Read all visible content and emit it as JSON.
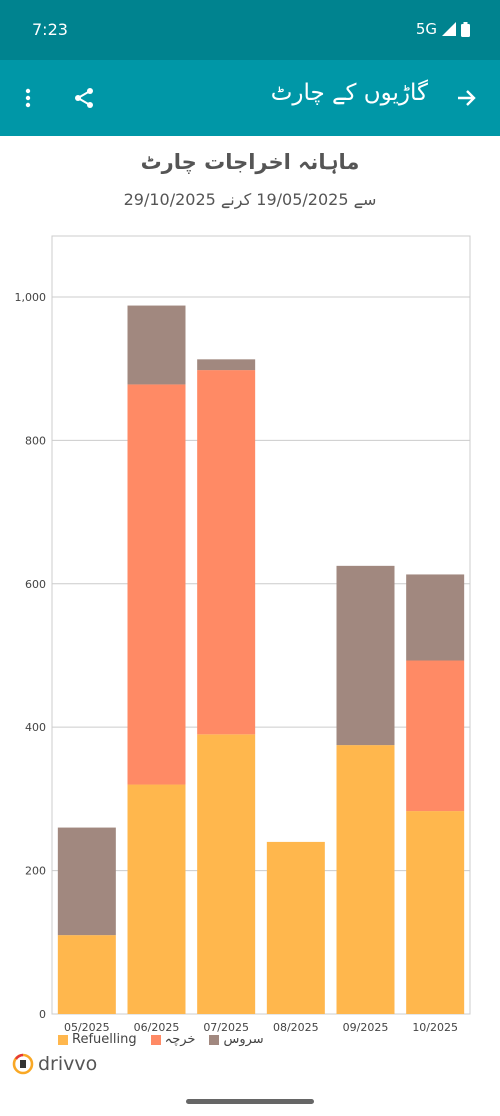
{
  "status": {
    "time": "7:23",
    "network": "5G"
  },
  "app_bar": {
    "title": "گاڑیوں کے چارٹ",
    "icons": [
      "more-vert-icon",
      "share-icon",
      "arrow-forward-icon"
    ]
  },
  "brand": {
    "name": "drivvo"
  },
  "colors": {
    "status_bar": "#00838f",
    "app_bar": "#0097a7",
    "refuelling": "#ffb74d",
    "expense": "#ff8a65",
    "service": "#a1887f"
  },
  "chart_data": {
    "type": "bar",
    "stacked": true,
    "title": "ماہانہ اخراجات چارٹ",
    "subtitle": "سے 19/05/2025 کرنے 29/10/2025",
    "categories": [
      "05/2025",
      "06/2025",
      "07/2025",
      "08/2025",
      "09/2025",
      "10/2025"
    ],
    "series": [
      {
        "name": "Refuelling",
        "color": "#ffb74d",
        "values": [
          110,
          320,
          390,
          240,
          375,
          283
        ]
      },
      {
        "name": "خرچہ",
        "color": "#ff8a65",
        "values": [
          0,
          558,
          508,
          0,
          0,
          210
        ]
      },
      {
        "name": "سروس",
        "color": "#a1887f",
        "values": [
          150,
          110,
          15,
          0,
          250,
          120
        ]
      }
    ],
    "ylim": [
      0,
      1085
    ],
    "yticks": [
      0,
      200,
      400,
      600,
      800,
      1000
    ],
    "ytick_labels": [
      "0",
      "200",
      "400",
      "600",
      "800",
      "1,000"
    ],
    "grid": true,
    "legend": "bottom-left"
  }
}
